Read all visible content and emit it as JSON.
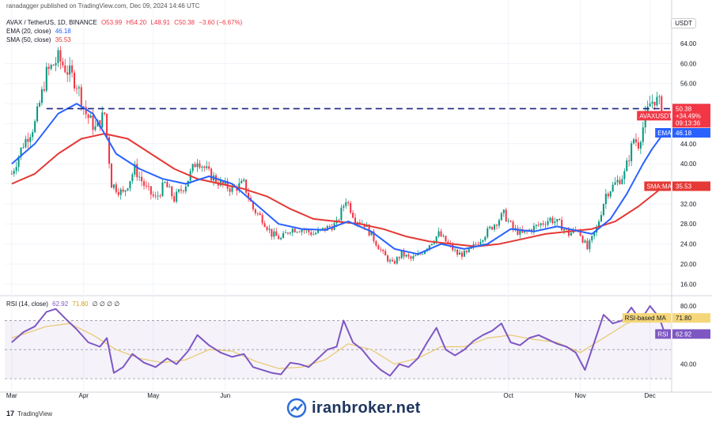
{
  "header": {
    "publisher": "ranadagger published on TradingView.com, Dec 09, 2024 14:46 UTC",
    "symbol": "AVAX / TetherUS, 1D, BINANCE",
    "ohlc": [
      "O53.99",
      "H54.20",
      "L48.91",
      "C50.38",
      "−3.60 (−6.67%)"
    ],
    "ema_label": "EMA (20, close)",
    "ema_value": "46.18",
    "sma_label": "SMA (50, close)",
    "sma_value": "35.53",
    "rsi_label": "RSI (14, close)",
    "rsi_value": "62.92",
    "rsi_ma_value": "71.80",
    "rsi_extra": "∅ ∅ ∅ ∅",
    "currency": "USDT"
  },
  "footer": {
    "brand": "TradingView",
    "watermark": "iranbroker.net"
  },
  "colors": {
    "up": "#089981",
    "down": "#f23645",
    "ema": "#2962ff",
    "sma": "#e53935",
    "rsi": "#7e57c2",
    "rsi_ma": "#e8c86a",
    "level": "#1a237e"
  },
  "chart_data": [
    {
      "type": "candlestick",
      "y_ticks": [
        64,
        60,
        56,
        52,
        48,
        44,
        40,
        36,
        32,
        28,
        24,
        20,
        16
      ],
      "y_tick_labels": [
        "64.00",
        "60.00",
        "56.00",
        "",
        "",
        "44.00",
        "40.00",
        "",
        "32.00",
        "28.00",
        "24.00",
        "20.00",
        "16.00"
      ],
      "ylim": [
        14,
        67
      ],
      "x_range_days": [
        -3,
        284
      ],
      "x_ticks": [
        {
          "day": 0,
          "label": "Mar"
        },
        {
          "day": 31,
          "label": "Apr"
        },
        {
          "day": 61,
          "label": "May"
        },
        {
          "day": 92,
          "label": "Jun"
        },
        {
          "day": 214,
          "label": "Oct"
        },
        {
          "day": 245,
          "label": "Nov"
        },
        {
          "day": 275,
          "label": "Dec"
        }
      ],
      "horizontal_level": {
        "value": 51.0,
        "label": "51.00"
      },
      "last_close": {
        "value": 50.38,
        "label": "AVAXUSDT",
        "price": "50.38",
        "change": "+34.49%",
        "countdown": "09:13:36"
      },
      "ema_tag": {
        "value": 46.18,
        "label": "EMA",
        "price": "46.18"
      },
      "sma_tag": {
        "value": 35.53,
        "label": "SMA:MA",
        "price": "35.53"
      },
      "close_anchors": [
        {
          "day": 0,
          "close": 38
        },
        {
          "day": 5,
          "close": 44
        },
        {
          "day": 10,
          "close": 48
        },
        {
          "day": 15,
          "close": 58
        },
        {
          "day": 20,
          "close": 61
        },
        {
          "day": 25,
          "close": 58
        },
        {
          "day": 28,
          "close": 56
        },
        {
          "day": 32,
          "close": 50
        },
        {
          "day": 36,
          "close": 47
        },
        {
          "day": 40,
          "close": 50
        },
        {
          "day": 43,
          "close": 36
        },
        {
          "day": 48,
          "close": 34
        },
        {
          "day": 53,
          "close": 39
        },
        {
          "day": 58,
          "close": 35
        },
        {
          "day": 62,
          "close": 33
        },
        {
          "day": 66,
          "close": 36
        },
        {
          "day": 70,
          "close": 33
        },
        {
          "day": 75,
          "close": 36
        },
        {
          "day": 80,
          "close": 41
        },
        {
          "day": 85,
          "close": 38
        },
        {
          "day": 90,
          "close": 36
        },
        {
          "day": 95,
          "close": 35
        },
        {
          "day": 100,
          "close": 36
        },
        {
          "day": 104,
          "close": 31
        },
        {
          "day": 108,
          "close": 29
        },
        {
          "day": 112,
          "close": 26
        },
        {
          "day": 116,
          "close": 25
        },
        {
          "day": 120,
          "close": 27
        },
        {
          "day": 125,
          "close": 27
        },
        {
          "day": 130,
          "close": 26
        },
        {
          "day": 135,
          "close": 27
        },
        {
          "day": 140,
          "close": 28
        },
        {
          "day": 144,
          "close": 33
        },
        {
          "day": 148,
          "close": 29
        },
        {
          "day": 152,
          "close": 28
        },
        {
          "day": 156,
          "close": 25
        },
        {
          "day": 160,
          "close": 22
        },
        {
          "day": 164,
          "close": 20
        },
        {
          "day": 168,
          "close": 22
        },
        {
          "day": 172,
          "close": 21
        },
        {
          "day": 176,
          "close": 22
        },
        {
          "day": 180,
          "close": 24
        },
        {
          "day": 184,
          "close": 26
        },
        {
          "day": 188,
          "close": 24
        },
        {
          "day": 192,
          "close": 22
        },
        {
          "day": 196,
          "close": 22
        },
        {
          "day": 200,
          "close": 24
        },
        {
          "day": 204,
          "close": 26
        },
        {
          "day": 208,
          "close": 28
        },
        {
          "day": 212,
          "close": 30
        },
        {
          "day": 216,
          "close": 27
        },
        {
          "day": 220,
          "close": 26
        },
        {
          "day": 224,
          "close": 27
        },
        {
          "day": 228,
          "close": 28
        },
        {
          "day": 232,
          "close": 29
        },
        {
          "day": 236,
          "close": 28
        },
        {
          "day": 240,
          "close": 26
        },
        {
          "day": 244,
          "close": 27
        },
        {
          "day": 248,
          "close": 23
        },
        {
          "day": 252,
          "close": 27
        },
        {
          "day": 256,
          "close": 34
        },
        {
          "day": 260,
          "close": 36
        },
        {
          "day": 264,
          "close": 38
        },
        {
          "day": 268,
          "close": 45
        },
        {
          "day": 270,
          "close": 44
        },
        {
          "day": 273,
          "close": 49
        },
        {
          "day": 275,
          "close": 52
        },
        {
          "day": 277,
          "close": 53
        },
        {
          "day": 279,
          "close": 52
        },
        {
          "day": 281,
          "close": 50.38
        }
      ],
      "ema": [
        {
          "day": 0,
          "value": 40
        },
        {
          "day": 10,
          "value": 44
        },
        {
          "day": 20,
          "value": 50
        },
        {
          "day": 28,
          "value": 52
        },
        {
          "day": 35,
          "value": 50
        },
        {
          "day": 45,
          "value": 42
        },
        {
          "day": 55,
          "value": 39
        },
        {
          "day": 65,
          "value": 37
        },
        {
          "day": 75,
          "value": 36
        },
        {
          "day": 85,
          "value": 37.5
        },
        {
          "day": 95,
          "value": 36
        },
        {
          "day": 105,
          "value": 32
        },
        {
          "day": 115,
          "value": 28
        },
        {
          "day": 125,
          "value": 27
        },
        {
          "day": 135,
          "value": 26.8
        },
        {
          "day": 145,
          "value": 28.5
        },
        {
          "day": 155,
          "value": 26.5
        },
        {
          "day": 165,
          "value": 23
        },
        {
          "day": 175,
          "value": 22
        },
        {
          "day": 185,
          "value": 24
        },
        {
          "day": 195,
          "value": 23
        },
        {
          "day": 205,
          "value": 24
        },
        {
          "day": 215,
          "value": 27
        },
        {
          "day": 225,
          "value": 26.5
        },
        {
          "day": 235,
          "value": 27.5
        },
        {
          "day": 245,
          "value": 26.5
        },
        {
          "day": 250,
          "value": 26
        },
        {
          "day": 258,
          "value": 29
        },
        {
          "day": 265,
          "value": 34
        },
        {
          "day": 272,
          "value": 40
        },
        {
          "day": 276,
          "value": 43
        },
        {
          "day": 281,
          "value": 46.18
        }
      ],
      "sma": [
        {
          "day": 0,
          "value": 36
        },
        {
          "day": 10,
          "value": 38
        },
        {
          "day": 20,
          "value": 42
        },
        {
          "day": 30,
          "value": 45
        },
        {
          "day": 40,
          "value": 46
        },
        {
          "day": 50,
          "value": 45
        },
        {
          "day": 60,
          "value": 42
        },
        {
          "day": 70,
          "value": 39
        },
        {
          "day": 80,
          "value": 37
        },
        {
          "day": 90,
          "value": 36
        },
        {
          "day": 100,
          "value": 35
        },
        {
          "day": 110,
          "value": 33.5
        },
        {
          "day": 120,
          "value": 31
        },
        {
          "day": 130,
          "value": 29
        },
        {
          "day": 140,
          "value": 28.5
        },
        {
          "day": 150,
          "value": 28
        },
        {
          "day": 160,
          "value": 27
        },
        {
          "day": 170,
          "value": 25.5
        },
        {
          "day": 180,
          "value": 24.5
        },
        {
          "day": 190,
          "value": 24
        },
        {
          "day": 200,
          "value": 23.5
        },
        {
          "day": 210,
          "value": 24
        },
        {
          "day": 220,
          "value": 25
        },
        {
          "day": 230,
          "value": 26
        },
        {
          "day": 240,
          "value": 26.5
        },
        {
          "day": 250,
          "value": 27
        },
        {
          "day": 260,
          "value": 28.5
        },
        {
          "day": 270,
          "value": 31.5
        },
        {
          "day": 281,
          "value": 35.53
        }
      ]
    },
    {
      "type": "line",
      "name": "RSI",
      "ylim": [
        24,
        86
      ],
      "y_ticks": [
        80,
        60,
        40
      ],
      "y_tick_labels": [
        "80.00",
        "60.00",
        "40.00"
      ],
      "band": [
        30,
        70
      ],
      "rsi": [
        {
          "day": 0,
          "value": 55
        },
        {
          "day": 5,
          "value": 62
        },
        {
          "day": 10,
          "value": 66
        },
        {
          "day": 15,
          "value": 76
        },
        {
          "day": 19,
          "value": 78
        },
        {
          "day": 24,
          "value": 70
        },
        {
          "day": 28,
          "value": 64
        },
        {
          "day": 33,
          "value": 55
        },
        {
          "day": 38,
          "value": 52
        },
        {
          "day": 41,
          "value": 58
        },
        {
          "day": 44,
          "value": 34
        },
        {
          "day": 48,
          "value": 38
        },
        {
          "day": 52,
          "value": 47
        },
        {
          "day": 57,
          "value": 41
        },
        {
          "day": 62,
          "value": 38
        },
        {
          "day": 67,
          "value": 44
        },
        {
          "day": 71,
          "value": 40
        },
        {
          "day": 76,
          "value": 49
        },
        {
          "day": 80,
          "value": 60
        },
        {
          "day": 85,
          "value": 53
        },
        {
          "day": 90,
          "value": 48
        },
        {
          "day": 95,
          "value": 45
        },
        {
          "day": 100,
          "value": 47
        },
        {
          "day": 104,
          "value": 38
        },
        {
          "day": 108,
          "value": 36
        },
        {
          "day": 112,
          "value": 34
        },
        {
          "day": 116,
          "value": 33
        },
        {
          "day": 120,
          "value": 41
        },
        {
          "day": 124,
          "value": 40
        },
        {
          "day": 128,
          "value": 38
        },
        {
          "day": 132,
          "value": 44
        },
        {
          "day": 136,
          "value": 50
        },
        {
          "day": 140,
          "value": 52
        },
        {
          "day": 143,
          "value": 70
        },
        {
          "day": 147,
          "value": 55
        },
        {
          "day": 151,
          "value": 50
        },
        {
          "day": 155,
          "value": 42
        },
        {
          "day": 159,
          "value": 36
        },
        {
          "day": 163,
          "value": 32
        },
        {
          "day": 167,
          "value": 40
        },
        {
          "day": 171,
          "value": 38
        },
        {
          "day": 175,
          "value": 44
        },
        {
          "day": 179,
          "value": 55
        },
        {
          "day": 183,
          "value": 65
        },
        {
          "day": 187,
          "value": 50
        },
        {
          "day": 191,
          "value": 46
        },
        {
          "day": 195,
          "value": 50
        },
        {
          "day": 199,
          "value": 56
        },
        {
          "day": 203,
          "value": 60
        },
        {
          "day": 207,
          "value": 63
        },
        {
          "day": 211,
          "value": 68
        },
        {
          "day": 215,
          "value": 55
        },
        {
          "day": 219,
          "value": 53
        },
        {
          "day": 223,
          "value": 58
        },
        {
          "day": 227,
          "value": 60
        },
        {
          "day": 231,
          "value": 57
        },
        {
          "day": 235,
          "value": 54
        },
        {
          "day": 239,
          "value": 52
        },
        {
          "day": 243,
          "value": 48
        },
        {
          "day": 247,
          "value": 36
        },
        {
          "day": 251,
          "value": 55
        },
        {
          "day": 255,
          "value": 74
        },
        {
          "day": 259,
          "value": 68
        },
        {
          "day": 263,
          "value": 70
        },
        {
          "day": 267,
          "value": 79
        },
        {
          "day": 270,
          "value": 72
        },
        {
          "day": 273,
          "value": 75
        },
        {
          "day": 275,
          "value": 80
        },
        {
          "day": 277,
          "value": 76
        },
        {
          "day": 279,
          "value": 72
        },
        {
          "day": 281,
          "value": 62.92
        }
      ],
      "rsi_ma": [
        {
          "day": 0,
          "value": 58
        },
        {
          "day": 15,
          "value": 66
        },
        {
          "day": 25,
          "value": 68
        },
        {
          "day": 35,
          "value": 60
        },
        {
          "day": 45,
          "value": 50
        },
        {
          "day": 55,
          "value": 44
        },
        {
          "day": 65,
          "value": 41
        },
        {
          "day": 75,
          "value": 43
        },
        {
          "day": 85,
          "value": 50
        },
        {
          "day": 95,
          "value": 49
        },
        {
          "day": 105,
          "value": 42
        },
        {
          "day": 115,
          "value": 37
        },
        {
          "day": 125,
          "value": 38
        },
        {
          "day": 135,
          "value": 43
        },
        {
          "day": 145,
          "value": 54
        },
        {
          "day": 155,
          "value": 50
        },
        {
          "day": 165,
          "value": 40
        },
        {
          "day": 175,
          "value": 44
        },
        {
          "day": 185,
          "value": 52
        },
        {
          "day": 195,
          "value": 52
        },
        {
          "day": 205,
          "value": 58
        },
        {
          "day": 215,
          "value": 60
        },
        {
          "day": 225,
          "value": 57
        },
        {
          "day": 235,
          "value": 55
        },
        {
          "day": 245,
          "value": 48
        },
        {
          "day": 255,
          "value": 58
        },
        {
          "day": 265,
          "value": 68
        },
        {
          "day": 275,
          "value": 73
        },
        {
          "day": 281,
          "value": 71.8
        }
      ],
      "tags": [
        {
          "label": "RSI-based MA",
          "value": 71.8,
          "price": "71.80"
        },
        {
          "label": "RSI",
          "value": 62.92,
          "price": "62.92"
        }
      ]
    }
  ]
}
